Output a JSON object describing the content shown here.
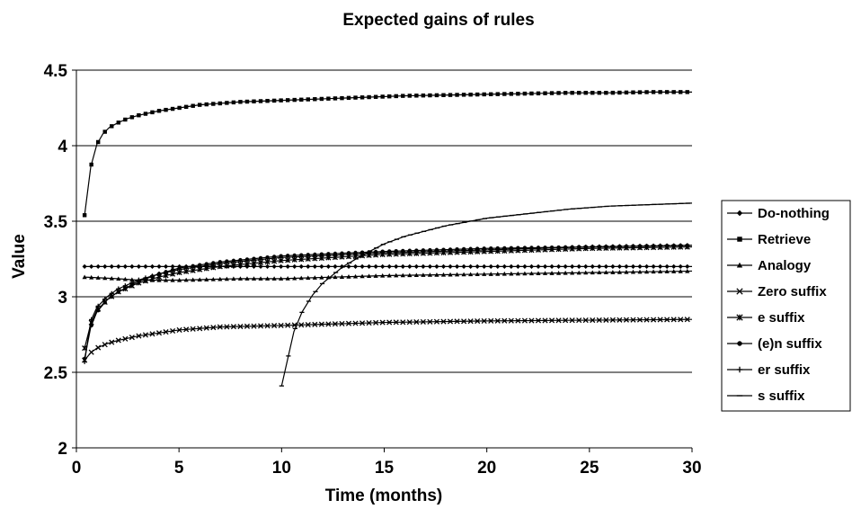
{
  "chart_data": {
    "type": "line",
    "title": "Expected gains of rules",
    "xlabel": "Time (months)",
    "ylabel": "Value",
    "xlim": [
      0,
      30
    ],
    "ylim": [
      2,
      4.5
    ],
    "xticks": [
      0,
      5,
      10,
      15,
      20,
      25,
      30
    ],
    "yticks": [
      2,
      2.5,
      3,
      3.5,
      4,
      4.5
    ],
    "ytick_labels": [
      "2",
      "2.5",
      "3",
      "3.5",
      "4",
      "4.5"
    ],
    "grid": "horizontal",
    "legend_position": "right",
    "line_color": "#000000",
    "series": [
      {
        "name": "Do-nothing",
        "marker": "diamond",
        "x": [
          0.4,
          5,
          10,
          15,
          20,
          25,
          30
        ],
        "y": [
          3.2,
          3.2,
          3.2,
          3.2,
          3.2,
          3.2,
          3.2
        ]
      },
      {
        "name": "Retrieve",
        "marker": "square",
        "x": [
          0.4,
          0.7,
          1.0,
          1.3,
          1.6,
          2.0,
          2.5,
          3.0,
          4.0,
          5.0,
          6.0,
          7.0,
          8.0,
          10.0,
          12.0,
          14.0,
          16.0,
          18.0,
          20.0,
          22.0,
          24.0,
          26.0,
          28.0,
          30.0
        ],
        "y": [
          3.54,
          3.86,
          4.01,
          4.08,
          4.12,
          4.15,
          4.18,
          4.2,
          4.23,
          4.25,
          4.27,
          4.28,
          4.29,
          4.3,
          4.31,
          4.32,
          4.33,
          4.335,
          4.34,
          4.345,
          4.35,
          4.35,
          4.355,
          4.355
        ]
      },
      {
        "name": "Analogy",
        "marker": "triangle",
        "x": [
          0.4,
          2,
          3,
          5,
          8,
          10,
          15,
          20,
          25,
          30
        ],
        "y": [
          3.13,
          3.12,
          3.11,
          3.11,
          3.12,
          3.12,
          3.14,
          3.15,
          3.16,
          3.17
        ]
      },
      {
        "name": "Zero suffix",
        "marker": "x",
        "x": [
          0.4,
          0.7,
          1.0,
          1.5,
          2.0,
          3.0,
          4.0,
          5.0,
          7.0,
          10.0,
          15.0,
          20.0,
          25.0,
          30.0
        ],
        "y": [
          2.58,
          2.63,
          2.66,
          2.69,
          2.71,
          2.74,
          2.76,
          2.78,
          2.8,
          2.81,
          2.83,
          2.84,
          2.845,
          2.85
        ]
      },
      {
        "name": "e suffix",
        "marker": "star",
        "x": [
          0.4,
          0.7,
          1.0,
          1.5,
          2.0,
          3.0,
          4.0,
          5.0,
          7.0,
          10.0,
          15.0,
          20.0,
          25.0,
          30.0
        ],
        "y": [
          2.66,
          2.82,
          2.91,
          2.98,
          3.03,
          3.09,
          3.13,
          3.16,
          3.2,
          3.24,
          3.28,
          3.3,
          3.32,
          3.33
        ]
      },
      {
        "name": "(e)n suffix",
        "marker": "circle",
        "x": [
          0.4,
          0.7,
          1.0,
          1.5,
          2.0,
          3.0,
          4.0,
          5.0,
          7.0,
          10.0,
          15.0,
          20.0,
          25.0,
          30.0
        ],
        "y": [
          2.59,
          2.8,
          2.9,
          2.98,
          3.03,
          3.1,
          3.15,
          3.19,
          3.23,
          3.27,
          3.3,
          3.32,
          3.33,
          3.34
        ]
      },
      {
        "name": "er suffix",
        "marker": "plus",
        "x": [
          0.4,
          0.7,
          1.0,
          1.5,
          2.0,
          3.0,
          4.0,
          5.0,
          7.0,
          10.0,
          15.0,
          20.0,
          25.0,
          30.0
        ],
        "y": [
          2.57,
          2.84,
          2.93,
          3.0,
          3.05,
          3.11,
          3.15,
          3.18,
          3.22,
          3.26,
          3.29,
          3.31,
          3.33,
          3.34
        ]
      },
      {
        "name": "s suffix",
        "marker": "dash",
        "x": [
          10.0,
          10.3,
          10.6,
          11.0,
          11.5,
          12.0,
          13.0,
          14.0,
          15.0,
          16.0,
          18.0,
          20.0,
          22.0,
          24.0,
          26.0,
          28.0,
          30.0
        ],
        "y": [
          2.41,
          2.59,
          2.77,
          2.9,
          3.01,
          3.09,
          3.2,
          3.28,
          3.35,
          3.4,
          3.47,
          3.52,
          3.55,
          3.58,
          3.6,
          3.61,
          3.62
        ]
      }
    ]
  }
}
